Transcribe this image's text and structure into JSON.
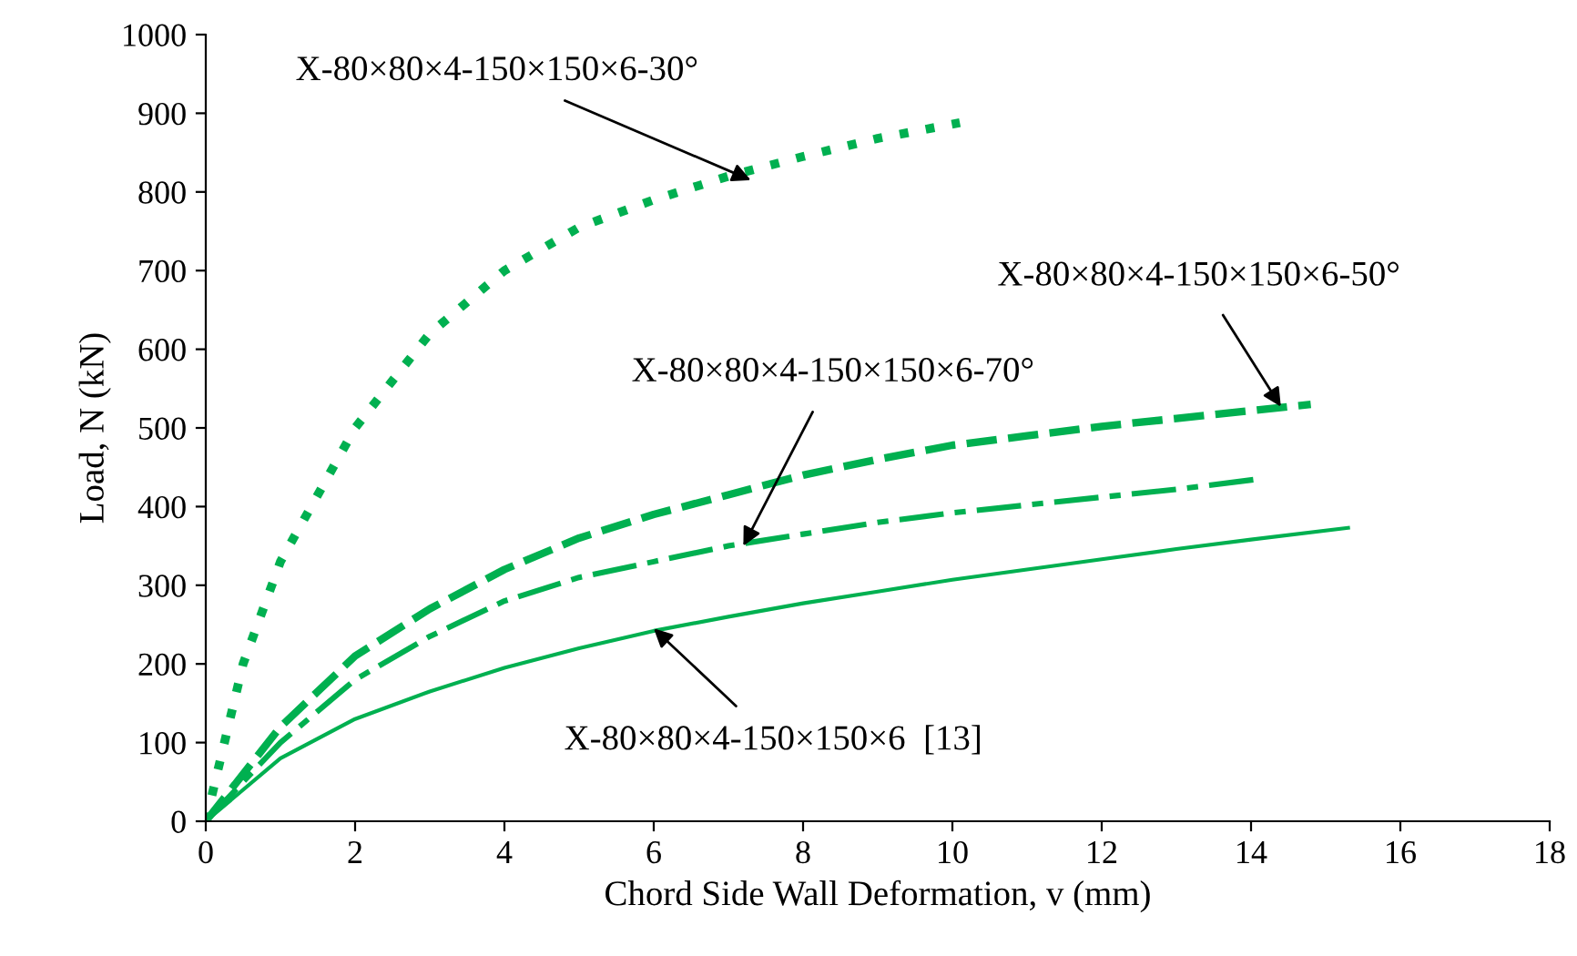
{
  "chart_data": {
    "type": "line",
    "xlabel": "Chord Side Wall Deformation, v (mm)",
    "ylabel": "Load, N (kN)",
    "xlim": [
      0,
      18
    ],
    "xticks": [
      0,
      2,
      4,
      6,
      8,
      10,
      12,
      14,
      16,
      18
    ],
    "ylim": [
      0,
      1000
    ],
    "yticks": [
      0,
      100,
      200,
      300,
      400,
      500,
      600,
      700,
      800,
      900,
      1000
    ],
    "grid": false,
    "legend": false,
    "marker": "none",
    "series": [
      {
        "color": "#00b050",
        "line_style": "dotted",
        "x": [
          0,
          0.5,
          1,
          2,
          3,
          4,
          5,
          6,
          7,
          8,
          9,
          10.1
        ],
        "values": [
          0,
          200,
          330,
          500,
          620,
          700,
          755,
          790,
          820,
          845,
          868,
          888
        ]
      },
      {
        "color": "#00b050",
        "line_style": "dashed",
        "x": [
          0,
          1,
          2,
          3,
          4,
          5,
          6,
          7,
          8,
          9,
          10,
          11,
          12,
          13,
          14,
          14.8
        ],
        "values": [
          0,
          120,
          210,
          270,
          320,
          360,
          390,
          415,
          440,
          460,
          478,
          490,
          502,
          512,
          522,
          530
        ]
      },
      {
        "color": "#00b050",
        "line_style": "dashdot",
        "x": [
          0,
          1,
          2,
          3,
          4,
          5,
          6,
          7,
          8,
          9,
          10,
          11,
          12,
          13,
          14.1
        ],
        "values": [
          0,
          100,
          180,
          235,
          280,
          310,
          330,
          350,
          365,
          380,
          392,
          402,
          412,
          422,
          435
        ]
      },
      {
        "color": "#00b050",
        "line_style": "solid",
        "x": [
          0,
          1,
          2,
          3,
          4,
          5,
          6,
          7,
          8,
          9,
          10,
          11,
          12,
          13,
          14,
          15.3
        ],
        "values": [
          0,
          80,
          130,
          165,
          195,
          220,
          242,
          260,
          277,
          292,
          307,
          320,
          333,
          346,
          358,
          373
        ]
      }
    ],
    "annotations": [
      {
        "text": "X-80×80×4-150×150×6-30°",
        "x": 7.3,
        "y": 815
      },
      {
        "text": "X-80×80×4-150×150×6-50°",
        "x": 14.4,
        "y": 527
      },
      {
        "text": "X-80×80×4-150×150×6-70°",
        "x": 7.2,
        "y": 350
      },
      {
        "text": "X-80×80×4-150×150×6  [13]",
        "x": 6.0,
        "y": 245
      }
    ]
  }
}
